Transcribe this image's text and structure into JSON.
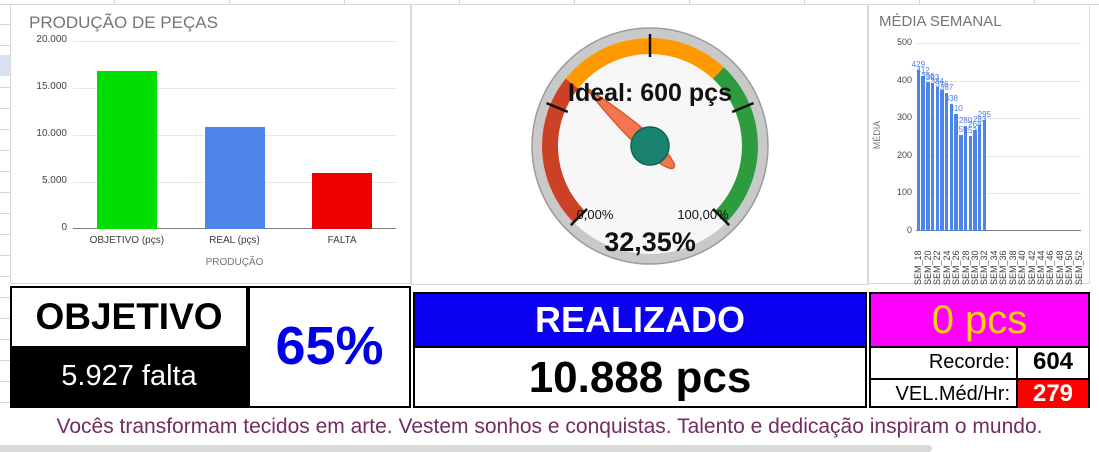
{
  "colors": {
    "objetivo_bar": "#00dd00",
    "real_bar": "#4d85e8",
    "falta_bar": "#ee0000",
    "week_bar": "#4d85e8",
    "realizado_bg": "#0b00f0",
    "saldo_bg": "#ff00ff",
    "saldo_text": "#ffd400",
    "vel_bg": "#ff0000",
    "percent_text": "#0000e6",
    "footer_text": "#722c5f",
    "gauge_red": "#cc4125",
    "gauge_orange": "#ff9900",
    "gauge_green": "#2e9c3e",
    "gauge_needle": "#f4764e",
    "gauge_hub": "#19836f"
  },
  "chart_data": [
    {
      "type": "bar",
      "title": "PRODUÇÃO DE PEÇAS",
      "xlabel": "PRODUÇÃO",
      "ylabel": "",
      "categories": [
        "OBJETIVO (pçs)",
        "REAL (pçs)",
        "FALTA"
      ],
      "values": [
        16815,
        10888,
        5927
      ],
      "bar_colors": [
        "#00dd00",
        "#4d85e8",
        "#ee0000"
      ],
      "ylim": [
        0,
        20000
      ],
      "ytick_labels": [
        "0",
        "5.000",
        "10.000",
        "15.000",
        "20.000"
      ],
      "grid": true,
      "legend": "none"
    },
    {
      "type": "gauge",
      "label": "Ideal: 600 pçs",
      "value_pct": 32.35,
      "value_label": "32,35%",
      "min_label": "0,00%",
      "max_label": "100,00%",
      "sweep_deg": 270,
      "ticks_pct": [
        0,
        25,
        50,
        75,
        100
      ],
      "zones": [
        {
          "from": 0,
          "to": 31,
          "color": "#cc4125"
        },
        {
          "from": 31,
          "to": 66,
          "color": "#ff9900"
        },
        {
          "from": 66,
          "to": 100,
          "color": "#2e9c3e"
        }
      ]
    },
    {
      "type": "bar",
      "title": "MÉDIA SEMANAL",
      "xlabel": "",
      "ylabel": "MÉDIA",
      "values": [
        429,
        412,
        396,
        393,
        384,
        376,
        367,
        338,
        310,
        255,
        280,
        252,
        268,
        283,
        295
      ],
      "num_slots": 35,
      "label_every": 2,
      "x_tick_labels": [
        "SEM_18",
        "SEM_20",
        "SEM_22",
        "SEM_24",
        "SEM_26",
        "SEM_28",
        "SEM_30",
        "SEM_32",
        "SEM_34",
        "SEM_36",
        "SEM_38",
        "SEM_40",
        "SEM_42",
        "SEM_44",
        "SEM_46",
        "SEM_48",
        "SEM_50",
        "SEM_52"
      ],
      "ylim": [
        0,
        500
      ],
      "ytick_labels": [
        "0",
        "100",
        "200",
        "300",
        "400",
        "500"
      ],
      "grid": true,
      "legend": "none"
    }
  ],
  "kpi": {
    "objetivo_label": "OBJETIVO",
    "falta_text": "5.927 falta",
    "percent": "65%",
    "realizado_label": "REALIZADO",
    "realizado_value": "10.888 pcs",
    "saldo_value": "0 pcs",
    "recorde_label": "Recorde:",
    "recorde_value": "604",
    "vel_label": "VEL.Méd/Hr:",
    "vel_value": "279"
  },
  "footer": {
    "message": "Vocês transformam tecidos em arte. Vestem sonhos e conquistas. Talento e dedicação inspiram o mundo."
  }
}
